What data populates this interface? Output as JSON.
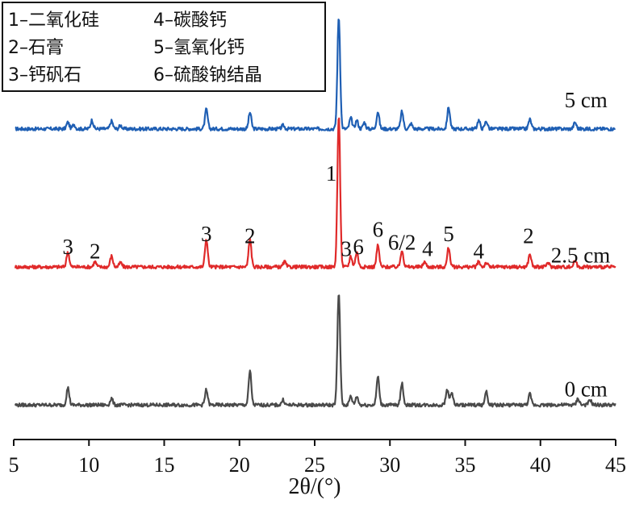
{
  "chart_data": {
    "type": "line",
    "xlabel": "2θ/(°)",
    "xlim": [
      5,
      45
    ],
    "ylim": [
      0,
      1
    ],
    "grid": false,
    "legend_position": "top-left",
    "x_ticks": [
      5,
      10,
      15,
      20,
      25,
      30,
      35,
      40,
      45
    ],
    "legend": [
      "1–二氧化硅",
      "2–石膏",
      "3–钙矾石",
      "4–碳酸钙",
      "5–氢氧化钙",
      "6–硫酸钠结晶"
    ],
    "series": [
      {
        "name": "5 cm",
        "color": "#1f5fb4",
        "offset": 0.72,
        "peaks": [
          [
            8.6,
            0.015
          ],
          [
            9.0,
            0.01
          ],
          [
            10.2,
            0.02
          ],
          [
            11.5,
            0.018
          ],
          [
            12.1,
            0.008
          ],
          [
            17.8,
            0.045
          ],
          [
            20.7,
            0.038
          ],
          [
            22.9,
            0.008
          ],
          [
            26.6,
            0.26
          ],
          [
            27.4,
            0.025
          ],
          [
            27.8,
            0.02
          ],
          [
            28.3,
            0.015
          ],
          [
            29.2,
            0.04
          ],
          [
            30.8,
            0.04
          ],
          [
            31.4,
            0.012
          ],
          [
            33.9,
            0.05
          ],
          [
            35.9,
            0.02
          ],
          [
            36.4,
            0.018
          ],
          [
            39.3,
            0.022
          ],
          [
            42.3,
            0.015
          ]
        ]
      },
      {
        "name": "2.5 cm",
        "color": "#e02a2a",
        "offset": 0.4,
        "peaks": [
          [
            8.6,
            0.035
          ],
          [
            10.4,
            0.012
          ],
          [
            11.5,
            0.025
          ],
          [
            12.1,
            0.01
          ],
          [
            17.8,
            0.065
          ],
          [
            20.7,
            0.065
          ],
          [
            23.0,
            0.012
          ],
          [
            26.6,
            0.35
          ],
          [
            27.4,
            0.025
          ],
          [
            27.8,
            0.035
          ],
          [
            29.2,
            0.05
          ],
          [
            30.8,
            0.04
          ],
          [
            32.3,
            0.012
          ],
          [
            33.9,
            0.045
          ],
          [
            35.9,
            0.012
          ],
          [
            36.4,
            0.01
          ],
          [
            39.3,
            0.03
          ],
          [
            40.5,
            0.01
          ],
          [
            42.3,
            0.015
          ]
        ]
      },
      {
        "name": "0 cm",
        "color": "#4a4a4a",
        "offset": 0.08,
        "peaks": [
          [
            8.6,
            0.04
          ],
          [
            11.5,
            0.015
          ],
          [
            17.8,
            0.035
          ],
          [
            20.7,
            0.078
          ],
          [
            22.9,
            0.012
          ],
          [
            26.6,
            0.26
          ],
          [
            27.4,
            0.02
          ],
          [
            27.8,
            0.02
          ],
          [
            29.2,
            0.065
          ],
          [
            30.8,
            0.05
          ],
          [
            33.8,
            0.035
          ],
          [
            34.1,
            0.03
          ],
          [
            36.4,
            0.03
          ],
          [
            39.3,
            0.025
          ],
          [
            42.5,
            0.015
          ],
          [
            43.3,
            0.012
          ]
        ]
      }
    ],
    "annotations": [
      {
        "text": "3",
        "x": 8.6
      },
      {
        "text": "2",
        "x": 10.4
      },
      {
        "text": "3",
        "x": 17.8
      },
      {
        "text": "2",
        "x": 20.7
      },
      {
        "text": "1",
        "x": 26.1
      },
      {
        "text": "3",
        "x": 27.1
      },
      {
        "text": "6",
        "x": 27.9
      },
      {
        "text": "6",
        "x": 29.2
      },
      {
        "text": "6/2",
        "x": 30.8
      },
      {
        "text": "4",
        "x": 32.5
      },
      {
        "text": "5",
        "x": 33.9
      },
      {
        "text": "4",
        "x": 35.9
      },
      {
        "text": "2",
        "x": 39.2
      }
    ]
  }
}
